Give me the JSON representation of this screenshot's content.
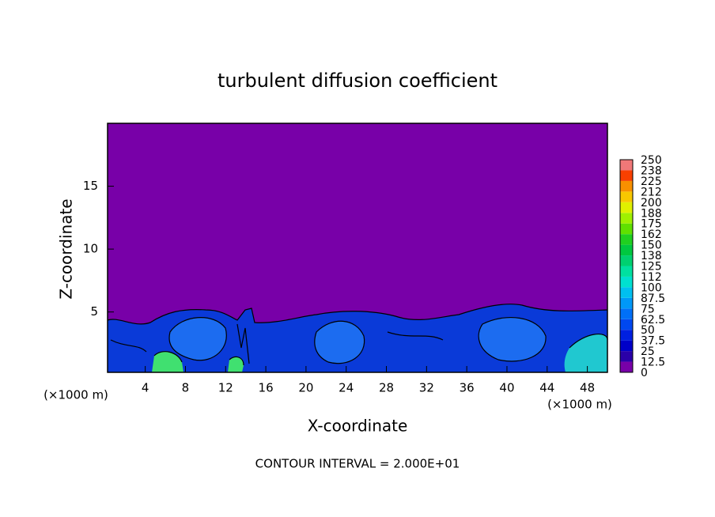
{
  "chart_data": {
    "type": "contour",
    "title": "turbulent diffusion coefficient",
    "xlabel": "X-coordinate",
    "ylabel": "Z-coordinate",
    "x_unit": "(×1000 m)",
    "footer": "CONTOUR INTERVAL = 2.000E+01",
    "xlim": [
      0.25,
      50
    ],
    "ylim": [
      0.2,
      20
    ],
    "xticks": [
      4,
      8,
      12,
      16,
      20,
      24,
      28,
      32,
      36,
      40,
      44,
      48
    ],
    "yticks": [
      5,
      10,
      15
    ],
    "colorbar": {
      "levels": [
        0,
        12.5,
        25,
        37.5,
        50,
        62.5,
        75,
        87.5,
        100,
        112,
        125,
        138,
        150,
        162,
        175,
        188,
        200,
        212,
        225,
        238,
        250
      ],
      "colors": [
        "#7800a8",
        "#2a00a8",
        "#0000c8",
        "#0020e0",
        "#0048f0",
        "#0070f8",
        "#0098f8",
        "#00c0f0",
        "#00e0d0",
        "#00e0a0",
        "#00d070",
        "#00c840",
        "#20d020",
        "#60e000",
        "#a0f000",
        "#e0f000",
        "#f8c800",
        "#f89000",
        "#f84000",
        "#f07878"
      ]
    }
  }
}
